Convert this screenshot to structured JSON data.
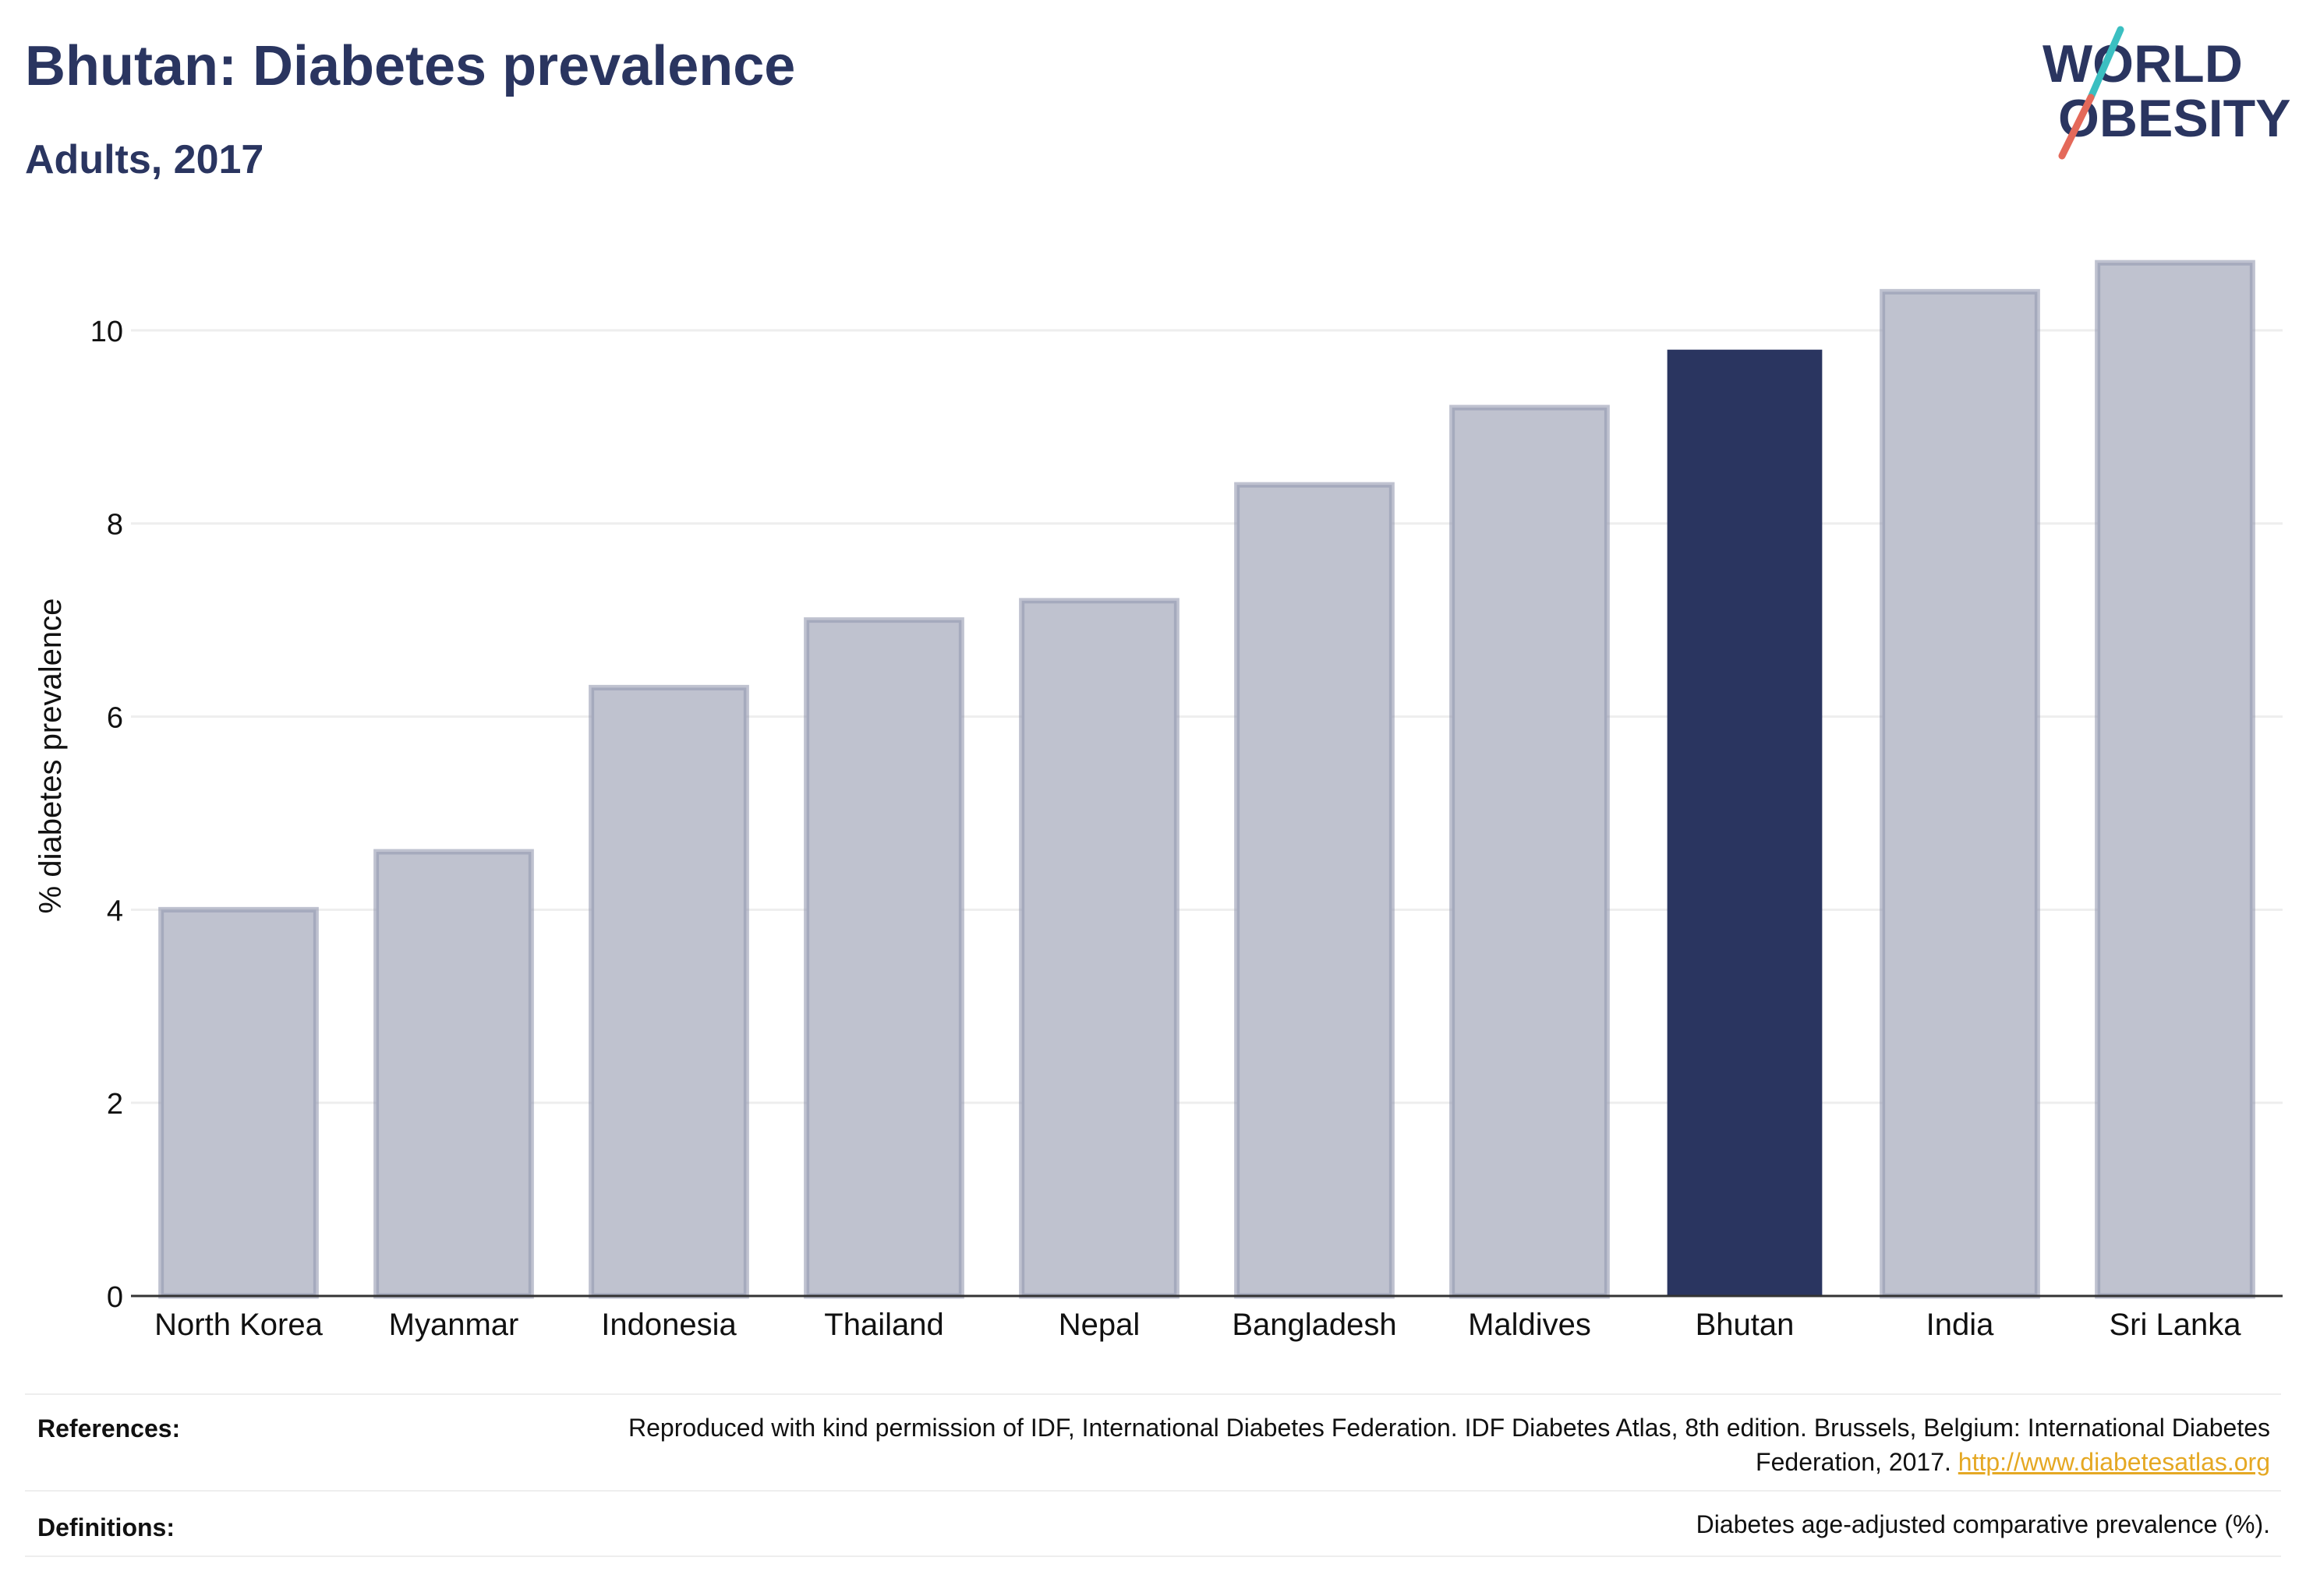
{
  "header": {
    "title": "Bhutan: Diabetes prevalence",
    "subtitle": "Adults, 2017"
  },
  "logo": {
    "line1": "WORLD",
    "line2": "OBESITY",
    "text_color": "#2a3560",
    "slash_top_color": "#3bbfc1",
    "slash_bottom_color": "#e4695a"
  },
  "chart_data": {
    "type": "bar",
    "categories": [
      "North Korea",
      "Myanmar",
      "Indonesia",
      "Thailand",
      "Nepal",
      "Bangladesh",
      "Maldives",
      "Bhutan",
      "India",
      "Sri Lanka"
    ],
    "values": [
      4.0,
      4.6,
      6.3,
      7.0,
      7.2,
      8.4,
      9.2,
      9.8,
      10.4,
      10.7
    ],
    "highlight": "Bhutan",
    "ylabel": "% diabetes prevalence",
    "xlabel": "",
    "ylim": [
      0,
      11
    ],
    "yticks": [
      0,
      2,
      4,
      6,
      8,
      10
    ],
    "grid": true,
    "colors": {
      "bar": "#bfc2cf",
      "bar_edge": "#9499b0",
      "highlight": "#2a3560",
      "grid": "#eeeeee",
      "axis": "#333333"
    }
  },
  "footer": {
    "references_label": "References:",
    "references_text": "Reproduced with kind permission of IDF, International Diabetes Federation. IDF Diabetes Atlas, 8th edition. Brussels, Belgium: International Diabetes Federation, 2017.",
    "references_link": "http://www.diabetesatlas.org",
    "definitions_label": "Definitions:",
    "definitions_text": "Diabetes age-adjusted comparative prevalence (%)."
  }
}
